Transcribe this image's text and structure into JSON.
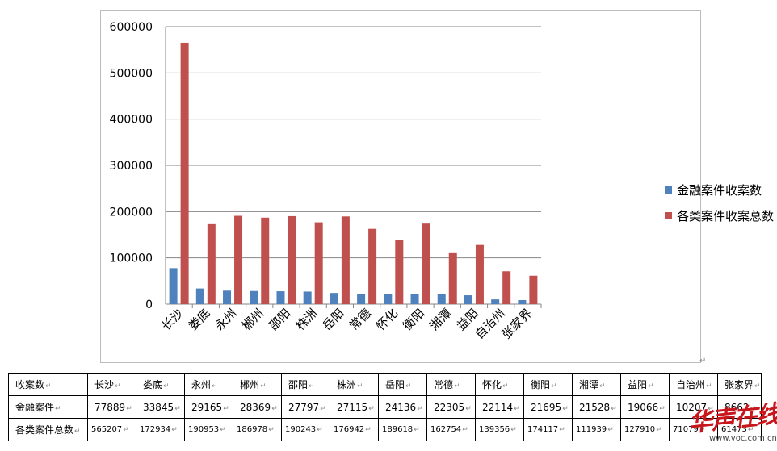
{
  "chart_data": {
    "type": "bar",
    "categories": [
      "长沙",
      "娄底",
      "永州",
      "郴州",
      "邵阳",
      "株洲",
      "岳阳",
      "常德",
      "怀化",
      "衡阳",
      "湘潭",
      "益阳",
      "自治州",
      "张家界"
    ],
    "series": [
      {
        "name": "金融案件收案数",
        "values": [
          77889,
          33845,
          29165,
          28369,
          27797,
          27115,
          24136,
          22305,
          22114,
          21695,
          21528,
          19066,
          10207,
          8662
        ],
        "color": "#4f81bd"
      },
      {
        "name": "各类案件收案总数",
        "values": [
          565207,
          172934,
          190953,
          186978,
          190243,
          176942,
          189618,
          162754,
          139356,
          174117,
          111939,
          127910,
          71079,
          61473
        ],
        "color": "#c0504d"
      }
    ],
    "yticks": [
      "0",
      "100000",
      "200000",
      "300000",
      "400000",
      "500000",
      "600000"
    ],
    "ylim": [
      0,
      600000
    ],
    "legend_position": "right",
    "grid": true
  },
  "table": {
    "headers": [
      "收案数",
      "长沙",
      "娄底",
      "永州",
      "郴州",
      "邵阳",
      "株洲",
      "岳阳",
      "常德",
      "怀化",
      "衡阳",
      "湘潭",
      "益阳",
      "自治州",
      "张家界"
    ],
    "rows": [
      {
        "label": "金融案件",
        "cells": [
          "77889",
          "33845",
          "29165",
          "28369",
          "27797",
          "27115",
          "24136",
          "22305",
          "22114",
          "21695",
          "21528",
          "19066",
          "10207",
          "8662"
        ]
      },
      {
        "label": "各类案件总数",
        "cells": [
          "565207",
          "172934",
          "190953",
          "186978",
          "190243",
          "176942",
          "189618",
          "162754",
          "139356",
          "174117",
          "111939",
          "127910",
          "71079",
          "61473"
        ]
      }
    ],
    "paragraph_mark": "↵"
  },
  "watermark": {
    "logo_text": "华声在线",
    "url": "www.voc.com.cn"
  }
}
